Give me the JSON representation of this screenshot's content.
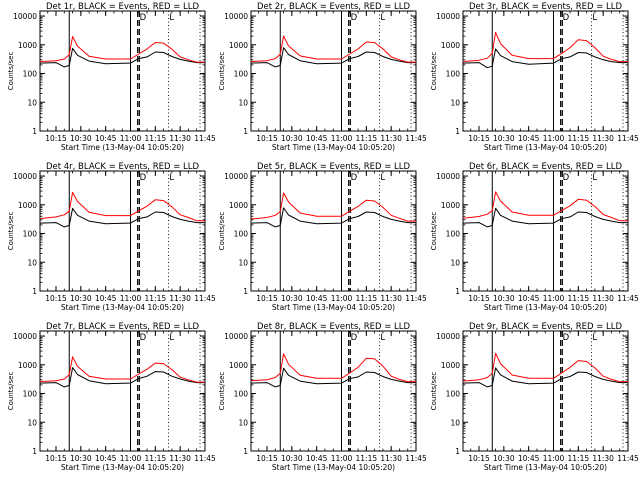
{
  "chart_data": {
    "type": "line",
    "scale": "log",
    "ylim": [
      1,
      15000
    ],
    "xlim": [
      "10:05:20",
      "11:45:00"
    ],
    "x_ticks": [
      "10:15",
      "10:30",
      "10:45",
      "11:00",
      "11:15",
      "11:30",
      "11:45"
    ],
    "y_ticks": [
      "1",
      "10",
      "100",
      "1000",
      "10000"
    ],
    "ylabel": "Counts/sec",
    "xlabel": "Start Time (13-May-04 10:05:20)",
    "colors": {
      "events": "#000000",
      "lld": "#ff0000"
    },
    "markers": {
      "solid": [
        "10:23:00",
        "11:00:00"
      ],
      "dashed": [
        "11:04:20",
        "11:05:20"
      ],
      "dotted": [
        "11:23:00",
        "11:42:00"
      ],
      "letters": [
        {
          "text": "D",
          "time": "11:05:30"
        },
        {
          "text": "L",
          "time": "11:23:30"
        }
      ]
    },
    "panels": [
      {
        "title": "Det 1r, BLACK = Events, RED = LLD",
        "series": [
          {
            "key": "events",
            "color": "#000000",
            "x": [
              "10:05:20",
              "10:15:00",
              "10:20:00",
              "10:23:00",
              "10:25:00",
              "10:28:00",
              "10:35:00",
              "10:45:00",
              "11:00:00",
              "11:05:00",
              "11:10:00",
              "11:15:00",
              "11:20:00",
              "11:25:00",
              "11:30:00",
              "11:35:00",
              "11:40:00",
              "11:45:00"
            ],
            "y": [
              230,
              240,
              170,
              190,
              750,
              430,
              270,
              220,
              230,
              330,
              380,
              560,
              540,
              390,
              310,
              270,
              240,
              240
            ]
          },
          {
            "key": "lld",
            "color": "#ff0000",
            "x": [
              "10:05:20",
              "10:15:00",
              "10:20:00",
              "10:23:00",
              "10:25:00",
              "10:28:00",
              "10:35:00",
              "10:45:00",
              "11:00:00",
              "11:05:00",
              "11:10:00",
              "11:15:00",
              "11:20:00",
              "11:25:00",
              "11:30:00",
              "11:35:00",
              "11:40:00",
              "11:45:00"
            ],
            "y": [
              260,
              280,
              320,
              450,
              1950,
              900,
              400,
              320,
              320,
              480,
              720,
              1200,
              1150,
              700,
              380,
              300,
              250,
              250
            ]
          }
        ]
      },
      {
        "title": "Det 2r, BLACK = Events, RED = LLD",
        "series": [
          {
            "key": "events",
            "color": "#000000",
            "x": [
              "10:05:20",
              "10:15:00",
              "10:20:00",
              "10:23:00",
              "10:25:00",
              "10:28:00",
              "10:35:00",
              "10:45:00",
              "11:00:00",
              "11:05:00",
              "11:10:00",
              "11:15:00",
              "11:20:00",
              "11:25:00",
              "11:30:00",
              "11:35:00",
              "11:40:00",
              "11:45:00"
            ],
            "y": [
              230,
              240,
              170,
              190,
              800,
              460,
              280,
              220,
              230,
              330,
              390,
              560,
              540,
              390,
              310,
              270,
              240,
              240
            ]
          },
          {
            "key": "lld",
            "color": "#ff0000",
            "x": [
              "10:05:20",
              "10:15:00",
              "10:20:00",
              "10:23:00",
              "10:25:00",
              "10:28:00",
              "10:35:00",
              "10:45:00",
              "11:00:00",
              "11:05:00",
              "11:10:00",
              "11:15:00",
              "11:20:00",
              "11:25:00",
              "11:30:00",
              "11:35:00",
              "11:40:00",
              "11:45:00"
            ],
            "y": [
              260,
              280,
              330,
              470,
              2000,
              920,
              410,
              320,
              320,
              480,
              720,
              1250,
              1200,
              720,
              380,
              300,
              250,
              250
            ]
          }
        ]
      },
      {
        "title": "Det 3r, BLACK = Events, RED = LLD",
        "series": [
          {
            "key": "events",
            "color": "#000000",
            "x": [
              "10:05:20",
              "10:15:00",
              "10:20:00",
              "10:23:00",
              "10:25:00",
              "10:28:00",
              "10:35:00",
              "10:45:00",
              "11:00:00",
              "11:05:00",
              "11:10:00",
              "11:15:00",
              "11:20:00",
              "11:25:00",
              "11:30:00",
              "11:35:00",
              "11:40:00",
              "11:45:00"
            ],
            "y": [
              230,
              240,
              160,
              180,
              720,
              420,
              260,
              210,
              230,
              330,
              380,
              540,
              520,
              380,
              300,
              260,
              240,
              240
            ]
          },
          {
            "key": "lld",
            "color": "#ff0000",
            "x": [
              "10:05:20",
              "10:15:00",
              "10:20:00",
              "10:23:00",
              "10:25:00",
              "10:28:00",
              "10:35:00",
              "10:45:00",
              "11:00:00",
              "11:05:00",
              "11:10:00",
              "11:15:00",
              "11:20:00",
              "11:25:00",
              "11:30:00",
              "11:35:00",
              "11:40:00",
              "11:45:00"
            ],
            "y": [
              260,
              290,
              340,
              500,
              2700,
              1100,
              430,
              330,
              330,
              500,
              800,
              1500,
              1400,
              800,
              400,
              310,
              260,
              260
            ]
          }
        ]
      },
      {
        "title": "Det 4r, BLACK = Events, RED = LLD",
        "series": [
          {
            "key": "events",
            "color": "#000000",
            "x": [
              "10:05:20",
              "10:15:00",
              "10:20:00",
              "10:23:00",
              "10:25:00",
              "10:28:00",
              "10:35:00",
              "10:45:00",
              "11:00:00",
              "11:05:00",
              "11:10:00",
              "11:15:00",
              "11:20:00",
              "11:25:00",
              "11:30:00",
              "11:35:00",
              "11:40:00",
              "11:45:00"
            ],
            "y": [
              230,
              240,
              170,
              190,
              750,
              430,
              270,
              220,
              230,
              330,
              380,
              560,
              540,
              390,
              310,
              270,
              240,
              240
            ]
          },
          {
            "key": "lld",
            "color": "#ff0000",
            "x": [
              "10:05:20",
              "10:15:00",
              "10:20:00",
              "10:23:00",
              "10:25:00",
              "10:28:00",
              "10:35:00",
              "10:45:00",
              "11:00:00",
              "11:05:00",
              "11:10:00",
              "11:15:00",
              "11:20:00",
              "11:25:00",
              "11:30:00",
              "11:35:00",
              "11:40:00",
              "11:45:00"
            ],
            "y": [
              330,
              380,
              450,
              600,
              2700,
              1300,
              550,
              420,
              420,
              620,
              900,
              1500,
              1400,
              850,
              450,
              360,
              280,
              280
            ]
          }
        ]
      },
      {
        "title": "Det 5r, BLACK = Events, RED = LLD",
        "series": [
          {
            "key": "events",
            "color": "#000000",
            "x": [
              "10:05:20",
              "10:15:00",
              "10:20:00",
              "10:23:00",
              "10:25:00",
              "10:28:00",
              "10:35:00",
              "10:45:00",
              "11:00:00",
              "11:05:00",
              "11:10:00",
              "11:15:00",
              "11:20:00",
              "11:25:00",
              "11:30:00",
              "11:35:00",
              "11:40:00",
              "11:45:00"
            ],
            "y": [
              230,
              240,
              170,
              190,
              780,
              440,
              270,
              220,
              230,
              330,
              390,
              560,
              540,
              390,
              310,
              270,
              240,
              240
            ]
          },
          {
            "key": "lld",
            "color": "#ff0000",
            "x": [
              "10:05:20",
              "10:15:00",
              "10:20:00",
              "10:23:00",
              "10:25:00",
              "10:28:00",
              "10:35:00",
              "10:45:00",
              "11:00:00",
              "11:05:00",
              "11:10:00",
              "11:15:00",
              "11:20:00",
              "11:25:00",
              "11:30:00",
              "11:35:00",
              "11:40:00",
              "11:45:00"
            ],
            "y": [
              320,
              360,
              430,
              580,
              2600,
              1250,
              520,
              400,
              400,
              600,
              880,
              1450,
              1350,
              820,
              430,
              340,
              270,
              270
            ]
          }
        ]
      },
      {
        "title": "Det 6r, BLACK = Events, RED = LLD",
        "series": [
          {
            "key": "events",
            "color": "#000000",
            "x": [
              "10:05:20",
              "10:15:00",
              "10:20:00",
              "10:23:00",
              "10:25:00",
              "10:28:00",
              "10:35:00",
              "10:45:00",
              "11:00:00",
              "11:05:00",
              "11:10:00",
              "11:15:00",
              "11:20:00",
              "11:25:00",
              "11:30:00",
              "11:35:00",
              "11:40:00",
              "11:45:00"
            ],
            "y": [
              230,
              240,
              170,
              190,
              760,
              430,
              270,
              220,
              230,
              330,
              380,
              560,
              540,
              390,
              310,
              270,
              240,
              240
            ]
          },
          {
            "key": "lld",
            "color": "#ff0000",
            "x": [
              "10:05:20",
              "10:15:00",
              "10:20:00",
              "10:23:00",
              "10:25:00",
              "10:28:00",
              "10:35:00",
              "10:45:00",
              "11:00:00",
              "11:05:00",
              "11:10:00",
              "11:15:00",
              "11:20:00",
              "11:25:00",
              "11:30:00",
              "11:35:00",
              "11:40:00",
              "11:45:00"
            ],
            "y": [
              340,
              390,
              470,
              620,
              2800,
              1350,
              560,
              430,
              430,
              640,
              920,
              1550,
              1450,
              870,
              460,
              360,
              280,
              280
            ]
          }
        ]
      },
      {
        "title": "Det 7r, BLACK = Events, RED = LLD",
        "series": [
          {
            "key": "events",
            "color": "#000000",
            "x": [
              "10:05:20",
              "10:15:00",
              "10:20:00",
              "10:23:00",
              "10:25:00",
              "10:28:00",
              "10:35:00",
              "10:45:00",
              "11:00:00",
              "11:05:00",
              "11:10:00",
              "11:15:00",
              "11:20:00",
              "11:25:00",
              "11:30:00",
              "11:35:00",
              "11:40:00",
              "11:45:00"
            ],
            "y": [
              230,
              240,
              170,
              190,
              800,
              460,
              280,
              220,
              230,
              330,
              400,
              580,
              560,
              400,
              320,
              270,
              240,
              240
            ]
          },
          {
            "key": "lld",
            "color": "#ff0000",
            "x": [
              "10:05:20",
              "10:15:00",
              "10:20:00",
              "10:23:00",
              "10:25:00",
              "10:28:00",
              "10:35:00",
              "10:45:00",
              "11:00:00",
              "11:05:00",
              "11:10:00",
              "11:15:00",
              "11:20:00",
              "11:25:00",
              "11:30:00",
              "11:35:00",
              "11:40:00",
              "11:45:00"
            ],
            "y": [
              260,
              280,
              320,
              450,
              1900,
              880,
              400,
              320,
              320,
              480,
              700,
              1150,
              1100,
              680,
              370,
              300,
              250,
              250
            ]
          }
        ]
      },
      {
        "title": "Det 8r, BLACK = Events, RED = LLD",
        "series": [
          {
            "key": "events",
            "color": "#000000",
            "x": [
              "10:05:20",
              "10:15:00",
              "10:20:00",
              "10:23:00",
              "10:25:00",
              "10:28:00",
              "10:35:00",
              "10:45:00",
              "11:00:00",
              "11:05:00",
              "11:10:00",
              "11:15:00",
              "11:20:00",
              "11:25:00",
              "11:30:00",
              "11:35:00",
              "11:40:00",
              "11:45:00"
            ],
            "y": [
              230,
              240,
              170,
              190,
              760,
              430,
              270,
              220,
              230,
              330,
              380,
              560,
              540,
              390,
              310,
              270,
              240,
              240
            ]
          },
          {
            "key": "lld",
            "color": "#ff0000",
            "x": [
              "10:05:20",
              "10:15:00",
              "10:20:00",
              "10:23:00",
              "10:25:00",
              "10:28:00",
              "10:35:00",
              "10:45:00",
              "11:00:00",
              "11:05:00",
              "11:10:00",
              "11:15:00",
              "11:20:00",
              "11:25:00",
              "11:30:00",
              "11:35:00",
              "11:40:00",
              "11:45:00"
            ],
            "y": [
              280,
              300,
              360,
              500,
              2400,
              1050,
              430,
              340,
              340,
              520,
              820,
              1700,
              1600,
              900,
              400,
              310,
              260,
              260
            ]
          }
        ]
      },
      {
        "title": "Det 9r, BLACK = Events, RED = LLD",
        "series": [
          {
            "key": "events",
            "color": "#000000",
            "x": [
              "10:05:20",
              "10:15:00",
              "10:20:00",
              "10:23:00",
              "10:25:00",
              "10:28:00",
              "10:35:00",
              "10:45:00",
              "11:00:00",
              "11:05:00",
              "11:10:00",
              "11:15:00",
              "11:20:00",
              "11:25:00",
              "11:30:00",
              "11:35:00",
              "11:40:00",
              "11:45:00"
            ],
            "y": [
              230,
              240,
              170,
              190,
              780,
              450,
              270,
              220,
              230,
              330,
              390,
              560,
              540,
              390,
              310,
              270,
              240,
              240
            ]
          },
          {
            "key": "lld",
            "color": "#ff0000",
            "x": [
              "10:05:20",
              "10:15:00",
              "10:20:00",
              "10:23:00",
              "10:25:00",
              "10:28:00",
              "10:35:00",
              "10:45:00",
              "11:00:00",
              "11:05:00",
              "11:10:00",
              "11:15:00",
              "11:20:00",
              "11:25:00",
              "11:30:00",
              "11:35:00",
              "11:40:00",
              "11:45:00"
            ],
            "y": [
              270,
              300,
              360,
              500,
              2500,
              1100,
              440,
              340,
              340,
              520,
              820,
              1400,
              1300,
              780,
              400,
              310,
              260,
              260
            ]
          }
        ]
      }
    ]
  }
}
